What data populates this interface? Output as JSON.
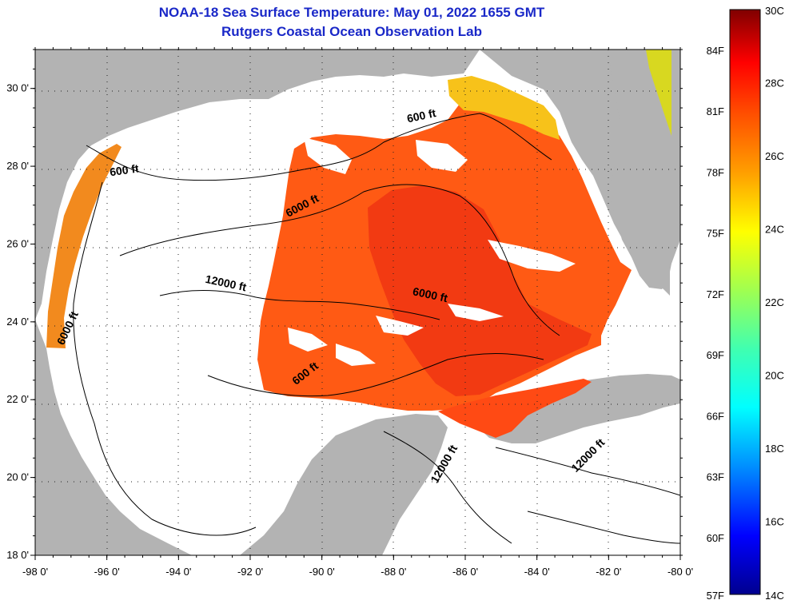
{
  "title": {
    "line1": "NOAA-18 Sea Surface Temperature:  May 01, 2022 1655 GMT",
    "line2": "Rutgers Coastal Ocean Observation Lab"
  },
  "axes": {
    "x_ticks": [
      "-98 0'",
      "-96 0'",
      "-94 0'",
      "-92 0'",
      "-90 0'",
      "-88 0'",
      "-86 0'",
      "-84 0'",
      "-82 0'",
      "-80 0'"
    ],
    "y_ticks": [
      "30 0'",
      "28 0'",
      "26 0'",
      "24 0'",
      "22 0'",
      "20 0'",
      "18 0'"
    ],
    "lon_range": [
      -98,
      -80
    ],
    "lat_range": [
      18,
      31
    ]
  },
  "contour_labels": [
    {
      "text": "600 ft",
      "lon": -87.2,
      "lat": 29.2,
      "angle": -12
    },
    {
      "text": "600 ft",
      "lon": -95.5,
      "lat": 27.8,
      "angle": -8
    },
    {
      "text": "6000 ft",
      "lon": -90.5,
      "lat": 26.9,
      "angle": -28
    },
    {
      "text": "12000 ft",
      "lon": -92.7,
      "lat": 24.9,
      "angle": 12
    },
    {
      "text": "6000 ft",
      "lon": -97.0,
      "lat": 23.8,
      "angle": -65
    },
    {
      "text": "6000 ft",
      "lon": -87.0,
      "lat": 24.6,
      "angle": 12
    },
    {
      "text": "600 ft",
      "lon": -90.4,
      "lat": 22.6,
      "angle": -38
    },
    {
      "text": "12000 ft",
      "lon": -86.5,
      "lat": 20.3,
      "angle": -60
    },
    {
      "text": "12000 ft",
      "lon": -82.5,
      "lat": 20.5,
      "angle": -45
    }
  ],
  "colorbar": {
    "celsius_labels": [
      "30C",
      "28C",
      "26C",
      "24C",
      "22C",
      "20C",
      "18C",
      "16C",
      "14C"
    ],
    "celsius_values": [
      30,
      28,
      26,
      24,
      22,
      20,
      18,
      16,
      14
    ],
    "fahrenheit_labels": [
      "84F",
      "81F",
      "78F",
      "75F",
      "72F",
      "69F",
      "66F",
      "63F",
      "60F",
      "57F"
    ],
    "fahrenheit_values": [
      84,
      81,
      78,
      75,
      72,
      69,
      66,
      63,
      60,
      57
    ],
    "range_c": [
      14,
      30
    ],
    "stops": [
      "#00008f",
      "#0000ff",
      "#0090ff",
      "#00ffff",
      "#40ffb0",
      "#a0ff50",
      "#ffff00",
      "#ffa000",
      "#ff5000",
      "#ff0000",
      "#800000"
    ]
  },
  "colors": {
    "land": "#b3b3b3",
    "ocean": "#ffffff",
    "sst_main": "#ff5a14",
    "sst_warm": "#f23a12",
    "sst_cool": "#ff8a0c",
    "sst_coastal": "#f5c20e",
    "title": "#1a28c8"
  }
}
